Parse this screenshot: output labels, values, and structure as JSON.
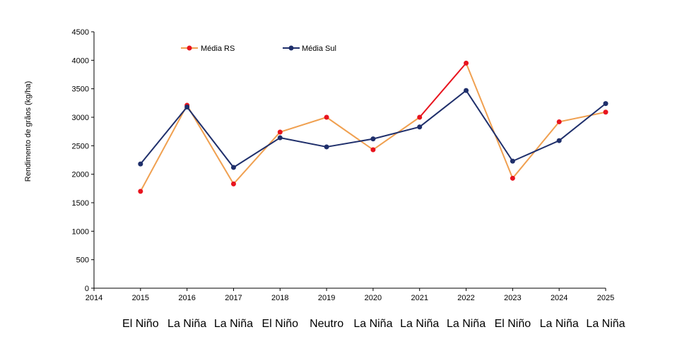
{
  "chart_data": {
    "type": "line",
    "ylabel": "Rendimento de grãos (kg/ha)",
    "xlabel": "",
    "title": "",
    "x_ticks": [
      "2014",
      "2015",
      "2016",
      "2017",
      "2018",
      "2019",
      "2020",
      "2021",
      "2022",
      "2023",
      "2024",
      "2025"
    ],
    "xlim": [
      2014,
      2025
    ],
    "ylim": [
      0,
      4500
    ],
    "y_ticks": [
      "0",
      "500",
      "1000",
      "1500",
      "2000",
      "2500",
      "3000",
      "3500",
      "4000",
      "4500"
    ],
    "grid": false,
    "legend_position": "top",
    "series": [
      {
        "name": "Média RS",
        "line_color": "#F0A050",
        "marker_color": "#E8141E",
        "highlight_segment": {
          "from": 2021,
          "to": 2022,
          "color": "#E8141E"
        },
        "x": [
          2015,
          2016,
          2017,
          2018,
          2019,
          2020,
          2021,
          2022,
          2023,
          2024,
          2025
        ],
        "values": [
          1700,
          3210,
          1830,
          2740,
          3000,
          2430,
          3000,
          3950,
          1930,
          2920,
          3090
        ]
      },
      {
        "name": "Média Sul",
        "line_color": "#1F2F6B",
        "marker_color": "#1F2F6B",
        "x": [
          2015,
          2016,
          2017,
          2018,
          2019,
          2020,
          2021,
          2022,
          2023,
          2024,
          2025
        ],
        "values": [
          2180,
          3180,
          2120,
          2640,
          2480,
          2620,
          2830,
          3470,
          2230,
          2590,
          3240
        ]
      }
    ],
    "enso_labels": [
      {
        "year": 2015,
        "label": "El Niño"
      },
      {
        "year": 2016,
        "label": "La Niña"
      },
      {
        "year": 2017,
        "label": "La Niña"
      },
      {
        "year": 2018,
        "label": "El Niño"
      },
      {
        "year": 2019,
        "label": "Neutro"
      },
      {
        "year": 2020,
        "label": "La Niña"
      },
      {
        "year": 2021,
        "label": "La Niña"
      },
      {
        "year": 2022,
        "label": "La Niña"
      },
      {
        "year": 2023,
        "label": "El Niño"
      },
      {
        "year": 2024,
        "label": "La Niña"
      },
      {
        "year": 2025,
        "label": "La Niña"
      }
    ]
  }
}
